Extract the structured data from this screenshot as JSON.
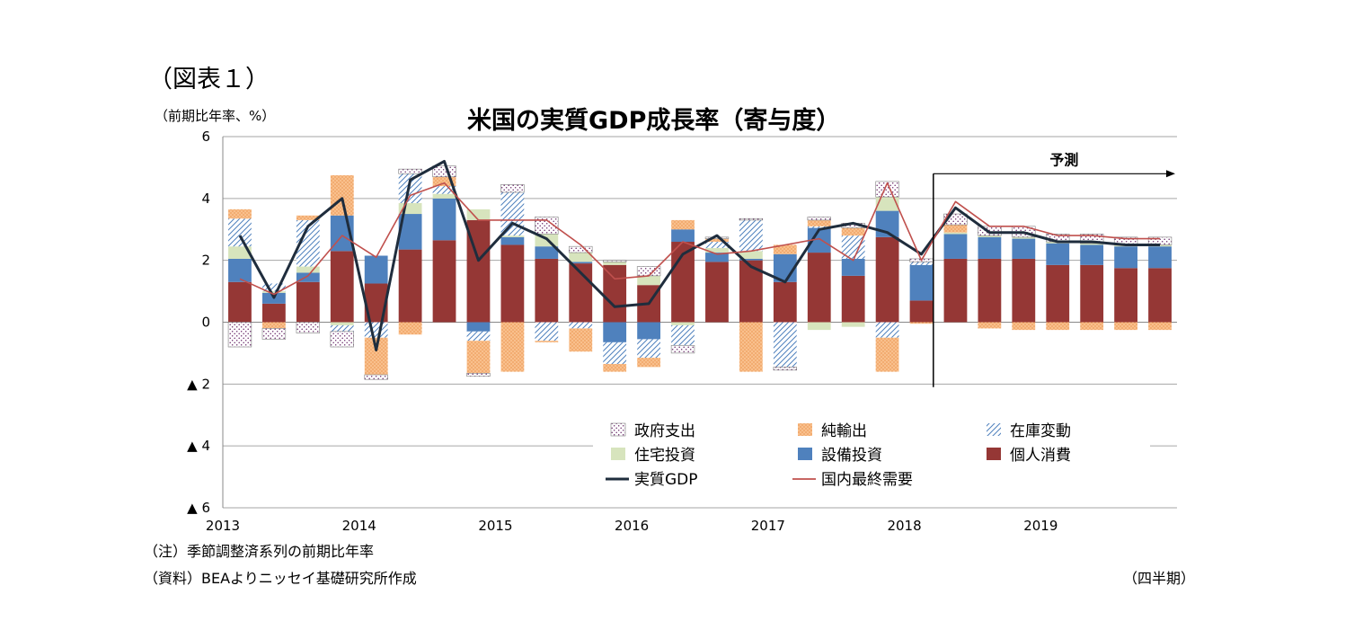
{
  "figure_label": "（図表１）",
  "unit_label": "（前期比年率、%）",
  "note": "（注）季節調整済系列の前期比年率",
  "source": "（資料）BEAよりニッセイ基礎研究所作成",
  "period_label": "（四半期）",
  "chart_data": {
    "type": "bar",
    "title": "米国の実質GDP成長率（寄与度）",
    "ylim": [
      -6,
      6
    ],
    "y_ticks": [
      "6",
      "4",
      "2",
      "0",
      "▲ 2",
      "▲ 4",
      "▲ 6"
    ],
    "y_tick_values": [
      6,
      4,
      2,
      0,
      -2,
      -4,
      -6
    ],
    "x_year_labels": [
      "2013",
      "2014",
      "2015",
      "2016",
      "2017",
      "2018",
      "2019"
    ],
    "x_year_start_index": [
      0,
      4,
      8,
      12,
      16,
      20,
      24
    ],
    "forecast_label": "予測",
    "forecast_start_index": 21,
    "quarters": 28,
    "legend_placement": "bottom-inside",
    "series": [
      {
        "name": "個人消費",
        "key": "pc",
        "color": "#953735",
        "values": [
          1.3,
          0.6,
          1.3,
          2.3,
          1.25,
          2.35,
          2.65,
          3.3,
          2.5,
          2.05,
          1.9,
          1.85,
          1.2,
          2.6,
          1.95,
          2.0,
          1.3,
          2.25,
          1.5,
          2.75,
          0.7,
          2.05,
          2.05,
          2.05,
          1.85,
          1.85,
          1.75,
          1.75
        ]
      },
      {
        "name": "設備投資",
        "key": "inv",
        "color": "#4f81bd",
        "values": [
          0.75,
          0.35,
          0.3,
          1.15,
          0.9,
          1.15,
          1.35,
          -0.3,
          0.25,
          0.4,
          0.05,
          -0.65,
          -0.55,
          0.4,
          0.3,
          0.05,
          0.9,
          0.8,
          0.55,
          0.85,
          1.15,
          0.8,
          0.7,
          0.65,
          0.7,
          0.65,
          0.7,
          0.7
        ]
      },
      {
        "name": "住宅投資",
        "key": "res",
        "color": "#d7e4bd",
        "values": [
          0.4,
          0.05,
          0.2,
          -0.1,
          0.0,
          0.35,
          0.15,
          0.35,
          0.05,
          0.4,
          0.3,
          0.1,
          0.3,
          -0.1,
          0.15,
          0.25,
          0.0,
          -0.25,
          -0.15,
          0.45,
          0.0,
          0.05,
          0.05,
          0.05,
          0.05,
          0.05,
          0.05,
          0.05
        ]
      },
      {
        "name": "在庫変動",
        "key": "stk",
        "color": "#b8d4e8",
        "values": [
          0.9,
          0.25,
          1.5,
          -0.2,
          -0.5,
          0.95,
          0.25,
          -0.3,
          1.4,
          -0.6,
          -0.2,
          -0.7,
          -0.6,
          -0.65,
          0.2,
          1.0,
          -1.45,
          0.05,
          0.75,
          -0.5,
          0.1,
          0.0,
          0.0,
          0.0,
          0.0,
          0.0,
          0.0,
          0.0
        ]
      },
      {
        "name": "純輸出",
        "key": "nx",
        "color": "#f9c08d",
        "values": [
          0.3,
          -0.2,
          0.15,
          1.3,
          -1.2,
          -0.4,
          0.3,
          -1.05,
          -1.6,
          -0.05,
          -0.75,
          -0.25,
          -0.3,
          0.3,
          0.1,
          -1.6,
          0.3,
          0.2,
          0.25,
          -1.1,
          -0.05,
          0.25,
          -0.2,
          -0.25,
          -0.25,
          -0.25,
          -0.25,
          -0.25
        ]
      },
      {
        "name": "政府支出",
        "key": "gov",
        "color": "#ffffff",
        "values": [
          -0.8,
          -0.35,
          -0.35,
          -0.5,
          -0.15,
          0.15,
          0.35,
          -0.1,
          0.25,
          0.55,
          0.2,
          0.05,
          0.3,
          -0.25,
          0.05,
          0.05,
          -0.1,
          0.1,
          0.15,
          0.5,
          0.1,
          0.35,
          0.3,
          0.35,
          0.25,
          0.3,
          0.25,
          0.25
        ]
      }
    ],
    "line_series": [
      {
        "name": "実質GDP",
        "key": "gdp",
        "color": "#1f2d3d",
        "values": [
          2.8,
          0.8,
          3.1,
          4.0,
          -0.9,
          4.6,
          5.2,
          2.0,
          3.2,
          2.7,
          1.6,
          0.5,
          0.6,
          2.2,
          2.8,
          1.8,
          1.3,
          3.0,
          3.2,
          2.9,
          2.2,
          3.7,
          2.9,
          2.9,
          2.6,
          2.6,
          2.5,
          2.5
        ]
      },
      {
        "name": "国内最終需要",
        "key": "dfd",
        "color": "#c0504d",
        "values": [
          1.4,
          0.9,
          1.5,
          2.8,
          2.1,
          4.1,
          4.5,
          3.3,
          3.3,
          3.3,
          2.5,
          1.4,
          1.5,
          2.6,
          2.2,
          2.3,
          2.5,
          2.7,
          2.0,
          4.5,
          2.0,
          3.9,
          3.1,
          3.1,
          2.8,
          2.8,
          2.7,
          2.7
        ]
      }
    ],
    "legend_rows": [
      [
        "政府支出",
        "純輸出",
        "在庫変動"
      ],
      [
        "住宅投資",
        "設備投資",
        "個人消費"
      ],
      [
        "実質GDP",
        "国内最終需要"
      ]
    ]
  }
}
